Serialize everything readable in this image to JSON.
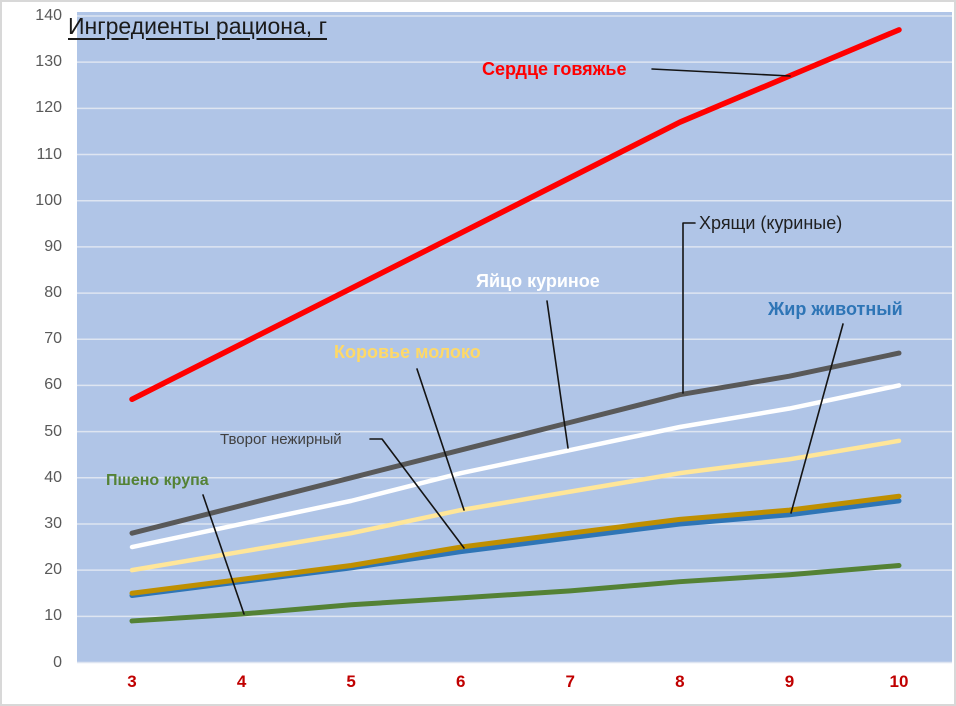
{
  "title": "Ингредиенты рациона, г",
  "colors": {
    "plot_background": "#b0c5e7",
    "gridline": "#dee5f1",
    "x_tick_color": "#c00000",
    "y_tick_color": "#595959",
    "leader_line_color": "#141414",
    "title_color": "#1a1a1a"
  },
  "chart_data": {
    "type": "line",
    "title": "Ингредиенты рациона, г",
    "xlabel": "",
    "ylabel": "",
    "x": [
      3,
      4,
      5,
      6,
      7,
      8,
      9,
      10
    ],
    "y_ticks": [
      0,
      10,
      20,
      30,
      40,
      50,
      60,
      70,
      80,
      90,
      100,
      110,
      120,
      130,
      140
    ],
    "ylim": [
      0,
      140
    ],
    "xlim": [
      3,
      10
    ],
    "grid": "horizontal",
    "legend_position": "inline-callout-labels",
    "series": [
      {
        "name": "Сердце говяжье",
        "color": "#ff0000",
        "label_color": "#ff0000",
        "values": [
          57,
          69,
          81,
          93,
          105,
          117,
          127,
          137
        ]
      },
      {
        "name": "Хрящи (куриные)",
        "color": "#595959",
        "label_color": "#1f1f1f",
        "values": [
          28,
          34,
          40,
          46,
          52,
          58,
          62,
          67
        ]
      },
      {
        "name": "Яйцо куриное",
        "color": "#ffffff",
        "label_color": "#ffffff",
        "values": [
          25,
          30,
          35,
          41,
          46,
          51,
          55,
          60
        ]
      },
      {
        "name": "Коровье молоко",
        "color": "#ffe699",
        "label_color": "#ffd966",
        "values": [
          20,
          24,
          28,
          33,
          37,
          41,
          44,
          48
        ]
      },
      {
        "name": "Творог нежирный",
        "color": "#bf8f00",
        "label_color": "#404040",
        "values": [
          15,
          18,
          21,
          25,
          28,
          31,
          33,
          36
        ]
      },
      {
        "name": "Жир животный",
        "color": "#2e75b6",
        "label_color": "#2e75b6",
        "values": [
          14.5,
          17.5,
          20.5,
          24,
          27,
          30,
          32,
          35
        ]
      },
      {
        "name": "Пшено крупа",
        "color": "#548235",
        "label_color": "#548235",
        "values": [
          9,
          10.5,
          12.5,
          14,
          15.5,
          17.5,
          19,
          21
        ]
      }
    ]
  }
}
